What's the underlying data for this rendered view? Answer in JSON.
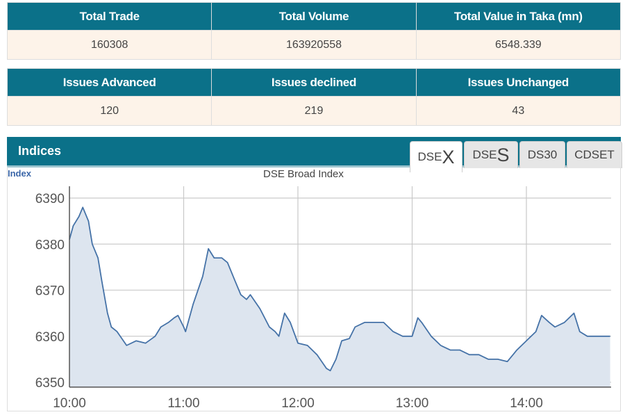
{
  "summary": {
    "headers": [
      "Total Trade",
      "Total Volume",
      "Total Value in Taka (mn)"
    ],
    "values": [
      "160308",
      "163920558",
      "6548.339"
    ]
  },
  "issues": {
    "headers": [
      "Issues Advanced",
      "Issues declined",
      "Issues Unchanged"
    ],
    "values": [
      "120",
      "219",
      "43"
    ]
  },
  "indices": {
    "title": "Indices",
    "tabs": [
      {
        "prefix": "DSE",
        "suffix": "X",
        "active": true
      },
      {
        "prefix": "DSE",
        "suffix": "S",
        "active": false
      },
      {
        "prefix": "DS30",
        "suffix": "",
        "active": false
      },
      {
        "prefix": "CDSET",
        "suffix": "",
        "active": false
      }
    ]
  },
  "chart_data": {
    "type": "area",
    "title": "DSE Broad Index",
    "ylabel": "Index",
    "xlabel": "",
    "ylim": [
      6349,
      6392
    ],
    "yticks": [
      6350,
      6360,
      6370,
      6380,
      6390
    ],
    "xticks": [
      "10:00",
      "11:00",
      "12:00",
      "13:00",
      "14:00"
    ],
    "xlim_minutes": [
      0,
      284
    ],
    "grid": true,
    "line_color": "#4572a7",
    "fill_color": "#dde5ef",
    "series": [
      {
        "name": "DSEX",
        "x_minutes": [
          0,
          2,
          5,
          7,
          10,
          12,
          15,
          17,
          20,
          22,
          25,
          30,
          35,
          40,
          45,
          48,
          52,
          55,
          57,
          60,
          61,
          65,
          70,
          73,
          76,
          80,
          83,
          87,
          90,
          93,
          95,
          100,
          105,
          108,
          110,
          113,
          116,
          120,
          125,
          130,
          135,
          137,
          140,
          143,
          147,
          150,
          155,
          160,
          165,
          170,
          175,
          180,
          183,
          185,
          190,
          195,
          200,
          205,
          210,
          215,
          220,
          225,
          230,
          233,
          235,
          240,
          245,
          248,
          252,
          255,
          260,
          265,
          268,
          272,
          275,
          280,
          284
        ],
        "values": [
          6381,
          6384,
          6386,
          6388,
          6385,
          6380,
          6377,
          6372,
          6365,
          6362,
          6361,
          6358,
          6359,
          6358.5,
          6360,
          6362,
          6363,
          6364,
          6364.5,
          6362,
          6361,
          6367,
          6373,
          6379,
          6377,
          6377,
          6376,
          6372,
          6369,
          6368,
          6369,
          6366,
          6362,
          6361,
          6360,
          6365,
          6363,
          6358.5,
          6358,
          6356,
          6353,
          6352.5,
          6355,
          6359,
          6359.5,
          6362,
          6363,
          6363,
          6363,
          6361,
          6360,
          6360,
          6364,
          6363,
          6360,
          6358,
          6357,
          6357,
          6356,
          6356,
          6355,
          6355,
          6354.5,
          6356,
          6357,
          6359,
          6361,
          6364.5,
          6363,
          6362,
          6363,
          6365,
          6361,
          6360,
          6360,
          6360,
          6360
        ]
      }
    ]
  }
}
